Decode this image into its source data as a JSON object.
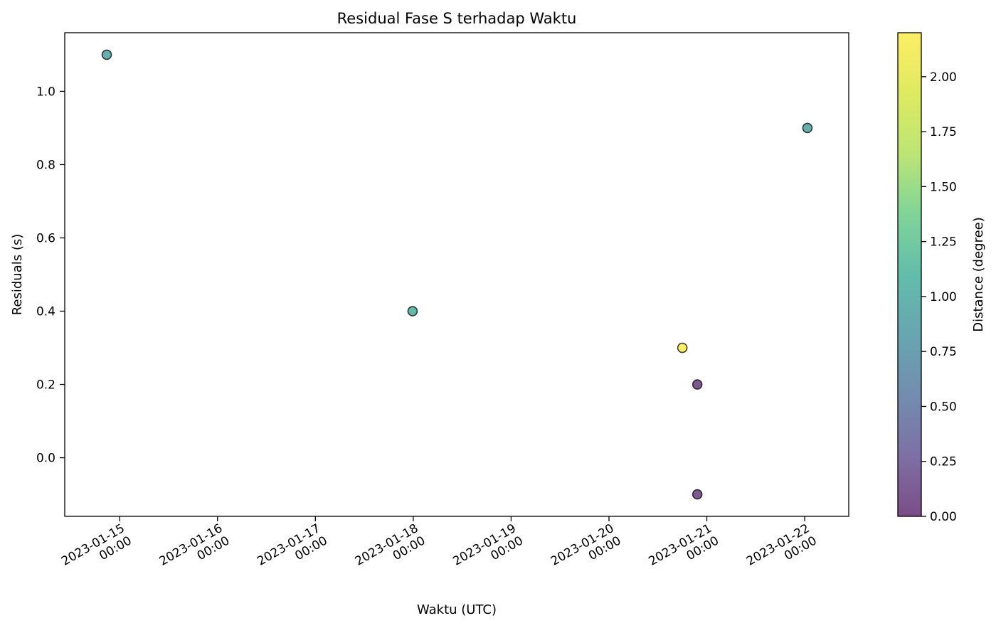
{
  "chart_data": {
    "type": "scatter",
    "title": "Residual Fase S terhadap Waktu",
    "xlabel": "Waktu (UTC)",
    "ylabel": "Residuals (s)",
    "x_axis": {
      "type": "datetime",
      "range": [
        "2023-01-14 10:32",
        "2023-01-22 10:48"
      ],
      "ticks": [
        {
          "value": "2023-01-15 00:00",
          "label": [
            "2023-01-15",
            "00:00"
          ]
        },
        {
          "value": "2023-01-16 00:00",
          "label": [
            "2023-01-16",
            "00:00"
          ]
        },
        {
          "value": "2023-01-17 00:00",
          "label": [
            "2023-01-17",
            "00:00"
          ]
        },
        {
          "value": "2023-01-18 00:00",
          "label": [
            "2023-01-18",
            "00:00"
          ]
        },
        {
          "value": "2023-01-19 00:00",
          "label": [
            "2023-01-19",
            "00:00"
          ]
        },
        {
          "value": "2023-01-20 00:00",
          "label": [
            "2023-01-20",
            "00:00"
          ]
        },
        {
          "value": "2023-01-21 00:00",
          "label": [
            "2023-01-21",
            "00:00"
          ]
        },
        {
          "value": "2023-01-22 00:00",
          "label": [
            "2023-01-22",
            "00:00"
          ]
        }
      ]
    },
    "y_axis": {
      "range": [
        -0.16,
        1.16
      ],
      "ticks": [
        {
          "value": 0.0,
          "label": "0.0"
        },
        {
          "value": 0.2,
          "label": "0.2"
        },
        {
          "value": 0.4,
          "label": "0.4"
        },
        {
          "value": 0.6,
          "label": "0.6"
        },
        {
          "value": 0.8,
          "label": "0.8"
        },
        {
          "value": 1.0,
          "label": "1.0"
        }
      ]
    },
    "points": [
      {
        "x": "2023-01-14 20:50",
        "y": 1.1,
        "distance": 0.95
      },
      {
        "x": "2023-01-17 23:50",
        "y": 0.4,
        "distance": 1.05
      },
      {
        "x": "2023-01-20 18:00",
        "y": 0.3,
        "distance": 2.2
      },
      {
        "x": "2023-01-20 21:40",
        "y": 0.2,
        "distance": 0.1
      },
      {
        "x": "2023-01-20 21:40",
        "y": -0.1,
        "distance": 0.1
      },
      {
        "x": "2023-01-22 00:40",
        "y": 0.9,
        "distance": 0.95
      }
    ],
    "marker": {
      "alpha": 0.7,
      "edgecolor": "#000000"
    },
    "colorbar": {
      "label": "Distance (degree)",
      "colormap": "viridis",
      "range": [
        0.0,
        2.2
      ],
      "ticks": [
        {
          "value": 0.0,
          "label": "0.00"
        },
        {
          "value": 0.25,
          "label": "0.25"
        },
        {
          "value": 0.5,
          "label": "0.50"
        },
        {
          "value": 0.75,
          "label": "0.75"
        },
        {
          "value": 1.0,
          "label": "1.00"
        },
        {
          "value": 1.25,
          "label": "1.25"
        },
        {
          "value": 1.5,
          "label": "1.50"
        },
        {
          "value": 1.75,
          "label": "1.75"
        },
        {
          "value": 2.0,
          "label": "2.00"
        }
      ]
    },
    "grid": false,
    "legend": "none"
  }
}
